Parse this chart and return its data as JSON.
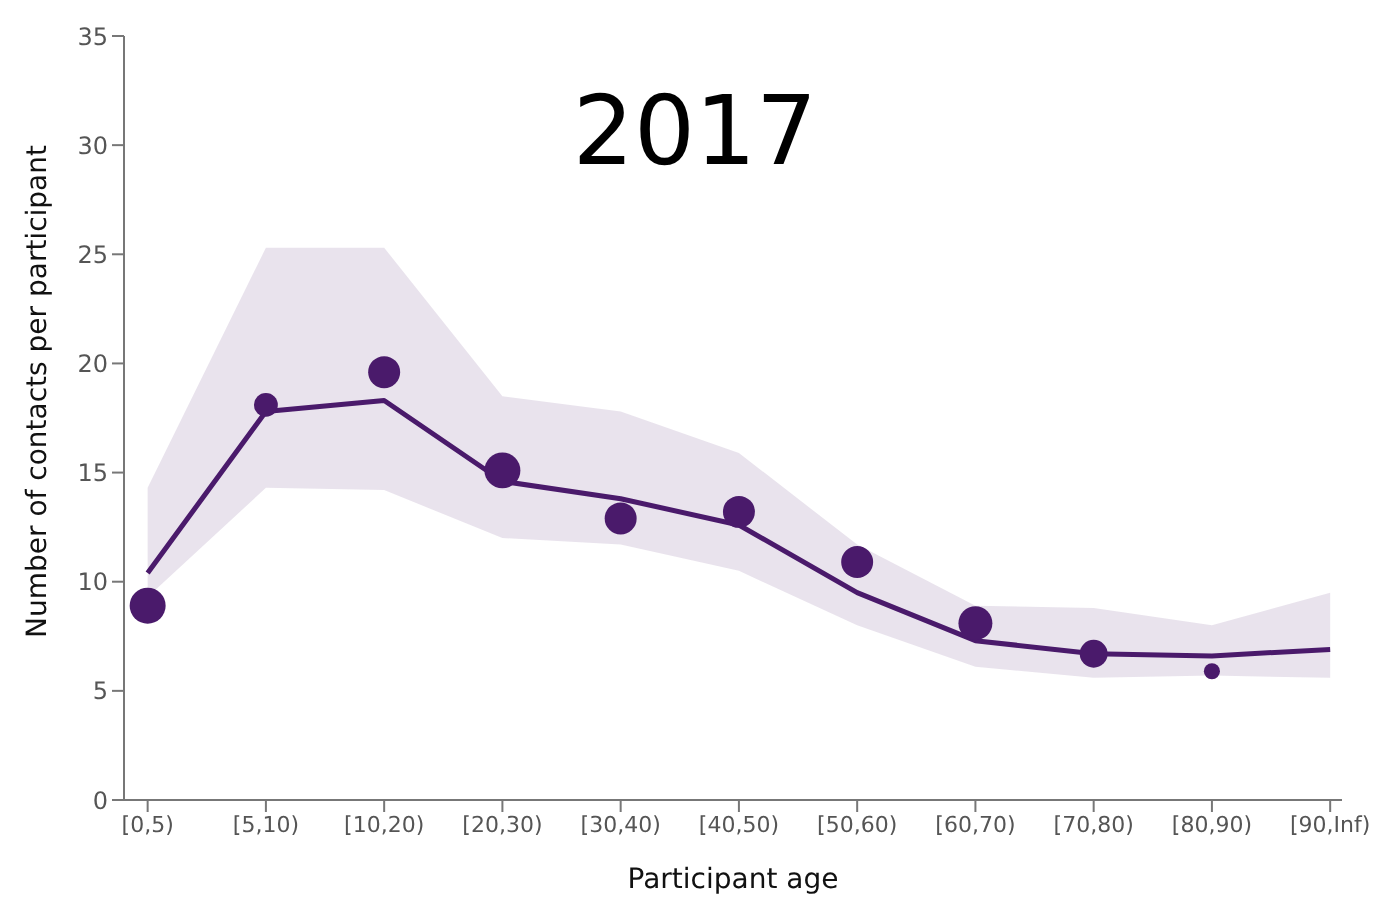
{
  "chart_data": {
    "type": "line",
    "title": "2017",
    "xlabel": "Participant age",
    "ylabel": "Number of contacts per participant",
    "categories": [
      "[0,5)",
      "[5,10)",
      "[10,20)",
      "[20,30)",
      "[30,40)",
      "[40,50)",
      "[50,60)",
      "[60,70)",
      "[70,80)",
      "[80,90)",
      "[90,Inf)"
    ],
    "series": [
      {
        "color": "#4a1a6b",
        "marker": "none",
        "values": [
          10.4,
          17.8,
          18.3,
          14.6,
          13.8,
          12.6,
          9.5,
          7.3,
          6.7,
          6.6,
          6.9
        ],
        "lower": [
          9.3,
          14.3,
          14.2,
          12.0,
          11.7,
          10.5,
          8.0,
          6.1,
          5.6,
          5.7,
          5.6
        ],
        "upper": [
          14.3,
          25.3,
          25.3,
          18.5,
          17.8,
          15.9,
          11.7,
          8.9,
          8.8,
          8.0,
          9.5
        ]
      },
      {
        "type": "bubble",
        "color": "#4a1a6b",
        "marker": "circle",
        "values": [
          8.9,
          18.1,
          19.6,
          15.1,
          12.9,
          13.2,
          10.9,
          8.1,
          6.7,
          5.9,
          null
        ],
        "sizes": [
          1,
          0.44,
          0.79,
          1,
          0.79,
          0.79,
          0.79,
          0.89,
          0.6,
          0.2,
          null
        ]
      }
    ],
    "ylim": [
      0,
      35
    ],
    "yticks": [
      0,
      5,
      10,
      15,
      20,
      25,
      30,
      35
    ],
    "grid": false,
    "legend": false
  }
}
